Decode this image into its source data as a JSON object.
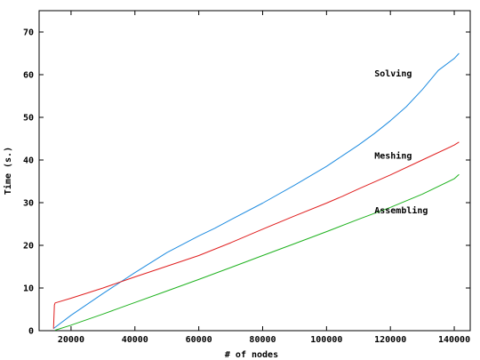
{
  "chart_data": {
    "type": "line",
    "title": "",
    "xlabel": "# of nodes",
    "ylabel": "Time (s.)",
    "xlim": [
      10000,
      145000
    ],
    "ylim": [
      0,
      75
    ],
    "xticks": [
      20000,
      40000,
      60000,
      80000,
      100000,
      120000,
      140000
    ],
    "xtick_labels": [
      "20000",
      "40000",
      "60000",
      "80000",
      "100000",
      "120000",
      "140000"
    ],
    "yticks": [
      0,
      10,
      20,
      30,
      40,
      50,
      60,
      70
    ],
    "ytick_labels": [
      "0",
      "10",
      "20",
      "30",
      "40",
      "50",
      "60",
      "70"
    ],
    "grid": false,
    "legend": "none",
    "series": [
      {
        "name": "Solving",
        "color": "#1f8ce0",
        "x": [
          14500,
          20000,
          30000,
          40000,
          50000,
          60000,
          65000,
          70000,
          80000,
          90000,
          100000,
          105000,
          110000,
          115000,
          120000,
          125000,
          130000,
          135000,
          140000,
          141500
        ],
        "y": [
          0.5,
          3.6,
          8.7,
          13.6,
          18.3,
          22.2,
          24.0,
          26.0,
          29.9,
          34.1,
          38.5,
          41.0,
          43.5,
          46.2,
          49.2,
          52.5,
          56.5,
          61.0,
          63.8,
          65.0
        ]
      },
      {
        "name": "Meshing",
        "color": "#e01f1f",
        "x": [
          14500,
          14800,
          15000,
          20000,
          30000,
          40000,
          50000,
          60000,
          70000,
          80000,
          90000,
          100000,
          105000,
          110000,
          120000,
          130000,
          140000,
          141500
        ],
        "y": [
          0.5,
          6.0,
          6.5,
          7.6,
          10.0,
          12.6,
          15.1,
          17.6,
          20.6,
          23.8,
          26.9,
          29.9,
          31.5,
          33.2,
          36.5,
          40.0,
          43.5,
          44.2
        ]
      },
      {
        "name": "Assembling",
        "color": "#1fb21f",
        "x": [
          15000,
          20000,
          30000,
          40000,
          50000,
          60000,
          70000,
          80000,
          90000,
          100000,
          110000,
          120000,
          130000,
          140000,
          141500
        ],
        "y": [
          0.1,
          1.3,
          3.9,
          6.6,
          9.3,
          12.0,
          14.8,
          17.6,
          20.4,
          23.2,
          26.1,
          28.9,
          32.0,
          35.6,
          36.6
        ]
      }
    ]
  }
}
